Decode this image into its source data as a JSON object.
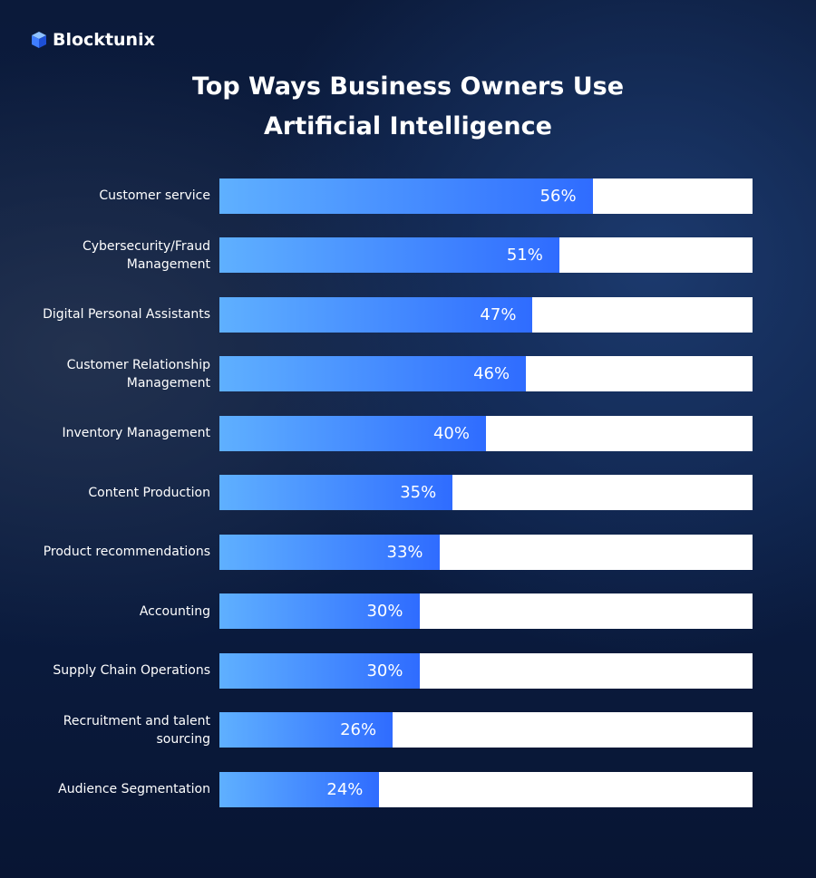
{
  "brand": "Blocktunix",
  "chart_data": {
    "type": "bar",
    "orientation": "horizontal",
    "title": "Top Ways Business Owners Use Artificial Intelligence",
    "categories": [
      "Customer service",
      "Cybersecurity/Fraud Management",
      "Digital Personal Assistants",
      "Customer Relationship Management",
      "Inventory Management",
      "Content Production",
      "Product recommendations",
      "Accounting",
      "Supply Chain Operations",
      "Recruitment and talent sourcing",
      "Audience Segmentation"
    ],
    "values": [
      56,
      51,
      47,
      46,
      40,
      35,
      33,
      30,
      30,
      26,
      24
    ],
    "value_labels": [
      "56%",
      "51%",
      "47%",
      "46%",
      "40%",
      "35%",
      "33%",
      "30%",
      "30%",
      "26%",
      "24%"
    ],
    "color": "#2f6cff",
    "xlim": [
      0,
      80
    ]
  }
}
